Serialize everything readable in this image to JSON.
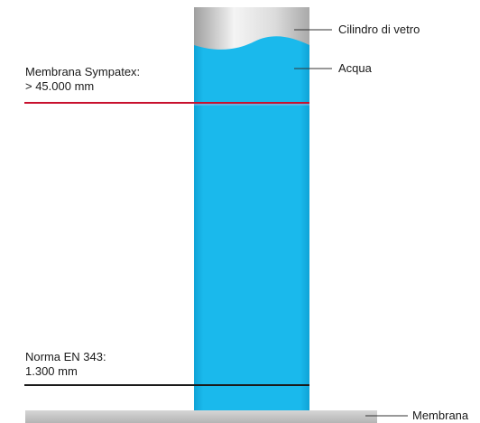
{
  "labels": {
    "glass_cylinder": "Cilindro di vetro",
    "water": "Acqua",
    "sympatex": {
      "line1": "Membrana Sympatex:",
      "line2": "> 45.000 mm"
    },
    "en343": {
      "line1": "Norma EN 343:",
      "line2": "1.300 mm"
    },
    "membrane": "Membrana"
  },
  "colors": {
    "water": "#16b7eb",
    "water_edge": "#0fa3d6",
    "glass_light": "#f2f2f2",
    "glass_dark": "#bdbdbd",
    "sympatex_line": "#c8102e",
    "en343_line": "#1a1a1a",
    "membrane": "#c4c4c4",
    "leader": "#333333"
  }
}
